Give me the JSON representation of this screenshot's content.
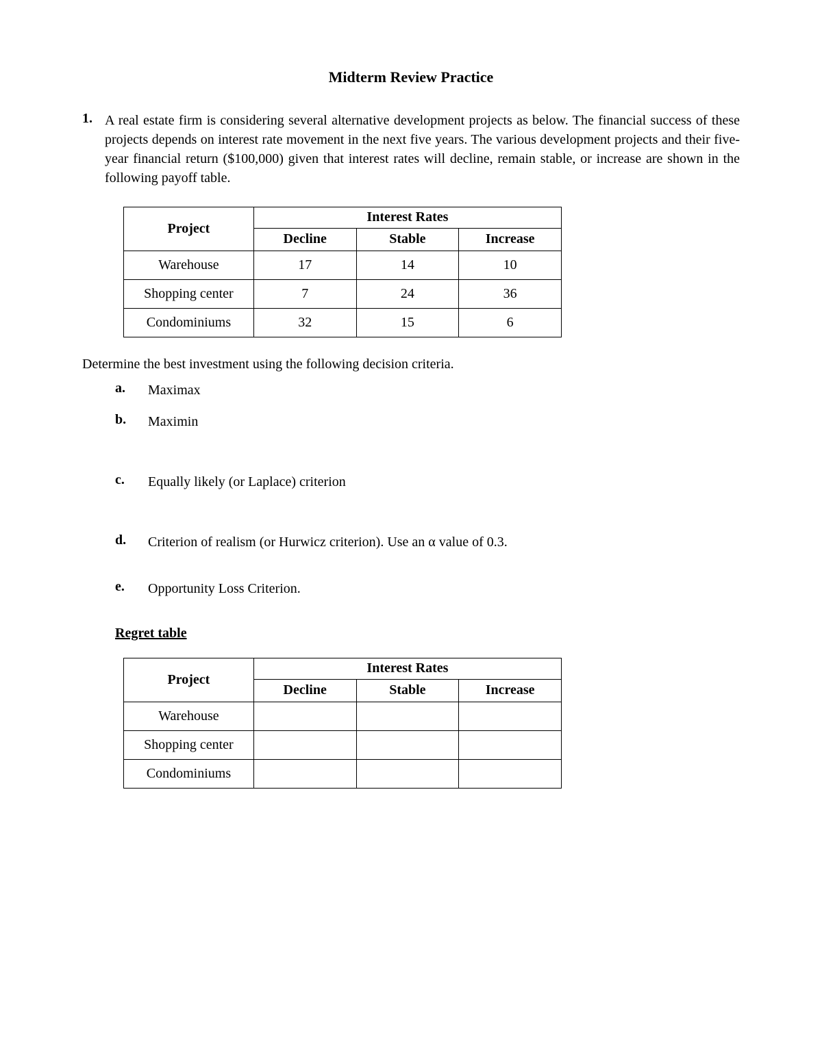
{
  "title": "Midterm Review Practice",
  "question_number": "1.",
  "question_text": "A real estate firm is considering several alternative development projects as below. The financial success of these projects depends on interest rate movement in the next five years. The various development projects and their five-year financial return ($100,000) given that interest rates will decline, remain stable, or increase are shown in the following payoff table.",
  "table1": {
    "project_header": "Project",
    "group_header": "Interest Rates",
    "columns": [
      "Decline",
      "Stable",
      "Increase"
    ],
    "rows": [
      {
        "label": "Warehouse",
        "values": [
          "17",
          "14",
          "10"
        ]
      },
      {
        "label": "Shopping center",
        "values": [
          "7",
          "24",
          "36"
        ]
      },
      {
        "label": "Condominiums",
        "values": [
          "32",
          "15",
          "6"
        ]
      }
    ]
  },
  "instruction": "Determine the best investment using the following decision criteria.",
  "criteria": {
    "a": {
      "letter": "a.",
      "text": "Maximax"
    },
    "b": {
      "letter": "b.",
      "text": "Maximin"
    },
    "c": {
      "letter": "c.",
      "text": "Equally likely (or Laplace) criterion"
    },
    "d": {
      "letter": "d.",
      "text": "Criterion of realism (or Hurwicz criterion). Use an α  value of 0.3."
    },
    "e": {
      "letter": "e.",
      "text": "Opportunity Loss Criterion."
    }
  },
  "regret_heading": "Regret table",
  "table2": {
    "project_header": "Project",
    "group_header": "Interest Rates",
    "columns": [
      "Decline",
      "Stable",
      "Increase"
    ],
    "rows": [
      {
        "label": "Warehouse",
        "values": [
          "",
          "",
          ""
        ]
      },
      {
        "label": "Shopping center",
        "values": [
          "",
          "",
          ""
        ]
      },
      {
        "label": "Condominiums",
        "values": [
          "",
          "",
          ""
        ]
      }
    ]
  }
}
